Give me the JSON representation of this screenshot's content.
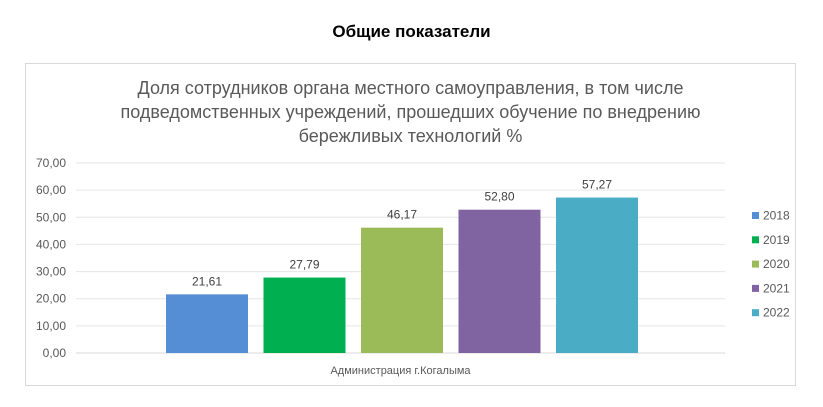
{
  "page_title": "Общие показатели",
  "chart_data": {
    "type": "bar",
    "title": "Доля сотрудников органа местного самоуправления, в том числе подведомственных учреждений, прошедших обучение по внедрению бережливых технологий %",
    "title_lines": [
      "Доля сотрудников органа местного самоуправления, в том числе",
      "подведомственных учреждений, прошедших обучение по внедрению",
      "бережливых технологий %"
    ],
    "categories": [
      "Администрация г.Когалыма"
    ],
    "series": [
      {
        "name": "2018",
        "values": [
          21.61
        ],
        "label": "21,61",
        "color": "#558ed5"
      },
      {
        "name": "2019",
        "values": [
          27.79
        ],
        "label": "27,79",
        "color": "#00b050"
      },
      {
        "name": "2020",
        "values": [
          46.17
        ],
        "label": "46,17",
        "color": "#9bbb59"
      },
      {
        "name": "2021",
        "values": [
          52.8
        ],
        "label": "52,80",
        "color": "#8064a2"
      },
      {
        "name": "2022",
        "values": [
          57.27
        ],
        "label": "57,27",
        "color": "#4bacc6"
      }
    ],
    "ylim": [
      0,
      70
    ],
    "yticks": [
      "0,00",
      "10,00",
      "20,00",
      "30,00",
      "40,00",
      "50,00",
      "60,00",
      "70,00"
    ],
    "grid": true,
    "legend": "right",
    "xlabel": "",
    "ylabel": ""
  }
}
